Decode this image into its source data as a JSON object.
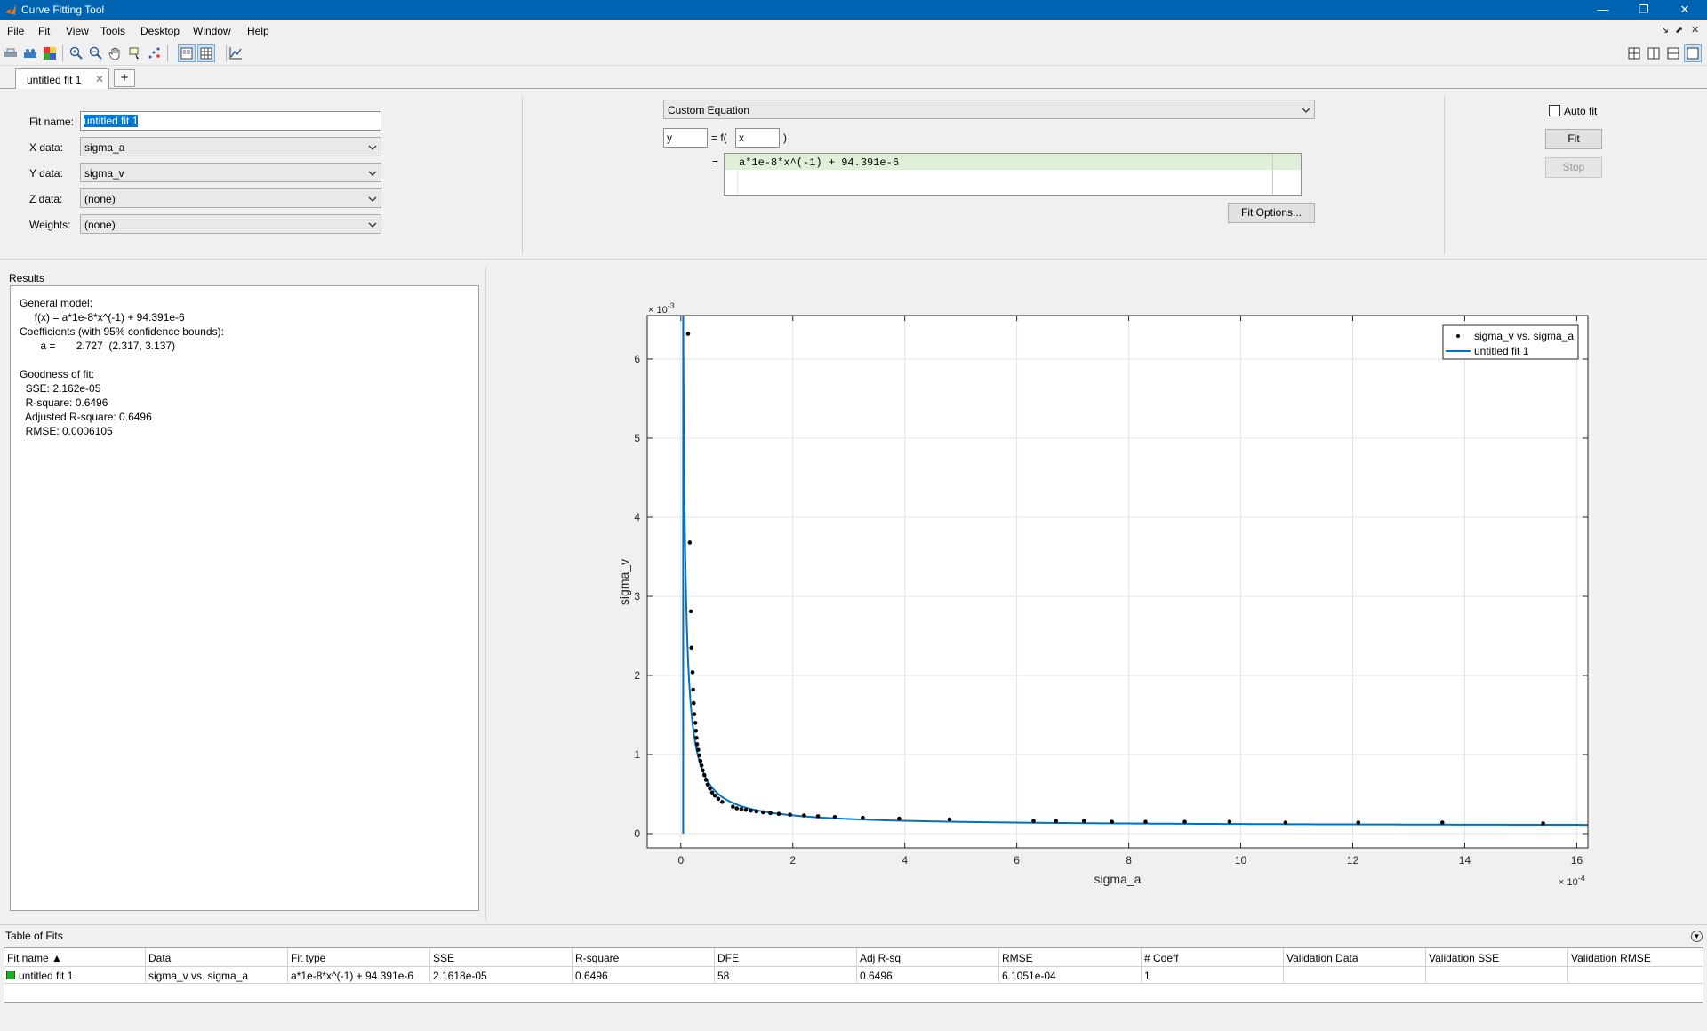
{
  "window": {
    "title": "Curve Fitting Tool",
    "minimize": "—",
    "restore": "❐",
    "close": "✕"
  },
  "menu": [
    "File",
    "Fit",
    "View",
    "Tools",
    "Desktop",
    "Window",
    "Help"
  ],
  "menu_right": [
    "↘",
    "⬈",
    "✕"
  ],
  "tabs": [
    {
      "label": "untitled fit 1",
      "close": "✕"
    }
  ],
  "tab_add": "+",
  "fit_settings": {
    "fit_name_label": "Fit name:",
    "fit_name_value": "untitled fit 1",
    "x_label": "X data:",
    "x_value": "sigma_a",
    "y_label": "Y data:",
    "y_value": "sigma_v",
    "z_label": "Z data:",
    "z_value": "(none)",
    "w_label": "Weights:",
    "w_value": "(none)"
  },
  "equation": {
    "type": "Custom Equation",
    "dep_var": "y",
    "eq_f": "= f(",
    "indep_var": "x",
    "close_paren": ")",
    "equals": "=",
    "expression": "a*1e-8*x^(-1) + 94.391e-6",
    "fit_options": "Fit Options..."
  },
  "controls": {
    "auto_fit": "Auto fit",
    "auto_fit_checked": false,
    "fit": "Fit",
    "stop": "Stop"
  },
  "results": {
    "header": "Results",
    "lines": [
      "General model:",
      "     f(x) = a*1e-8*x^(-1) + 94.391e-6",
      "Coefficients (with 95% confidence bounds):",
      "       a =       2.727  (2.317, 3.137)",
      "",
      "Goodness of fit:",
      "  SSE: 2.162e-05",
      "  R-square: 0.6496",
      "  Adjusted R-square: 0.6496",
      "  RMSE: 0.0006105"
    ]
  },
  "chart_data": {
    "type": "scatter",
    "xlabel": "sigma_a",
    "ylabel": "sigma_v",
    "x_exponent_label": "× 10",
    "x_exponent": "-4",
    "y_exponent_label": "× 10",
    "y_exponent": "-3",
    "xlim": [
      -0.6,
      16.2
    ],
    "ylim": [
      -0.18,
      6.55
    ],
    "xticks": [
      0,
      2,
      4,
      6,
      8,
      10,
      12,
      14,
      16
    ],
    "yticks": [
      0,
      1,
      2,
      3,
      4,
      5,
      6
    ],
    "grid": true,
    "legend_position": "top-right",
    "series": [
      {
        "name": "sigma_v vs. sigma_a",
        "kind": "points",
        "color": "#000000",
        "x": [
          0.13,
          0.16,
          0.18,
          0.19,
          0.21,
          0.22,
          0.23,
          0.24,
          0.26,
          0.27,
          0.28,
          0.29,
          0.31,
          0.33,
          0.35,
          0.37,
          0.39,
          0.42,
          0.45,
          0.48,
          0.52,
          0.56,
          0.61,
          0.67,
          0.74,
          0.93,
          1.0,
          1.08,
          1.16,
          1.25,
          1.35,
          1.47,
          1.6,
          1.75,
          1.95,
          2.2,
          2.45,
          2.75,
          3.25,
          3.9,
          4.8,
          6.3,
          6.7,
          7.2,
          7.7,
          8.3,
          9.0,
          9.8,
          10.8,
          12.1,
          13.6,
          15.4
        ],
        "y": [
          6.32,
          3.68,
          2.81,
          2.35,
          2.04,
          1.82,
          1.65,
          1.51,
          1.4,
          1.3,
          1.21,
          1.13,
          1.06,
          0.99,
          0.92,
          0.86,
          0.8,
          0.74,
          0.68,
          0.62,
          0.57,
          0.52,
          0.48,
          0.44,
          0.4,
          0.34,
          0.32,
          0.31,
          0.3,
          0.29,
          0.28,
          0.27,
          0.26,
          0.25,
          0.24,
          0.23,
          0.22,
          0.21,
          0.2,
          0.19,
          0.18,
          0.16,
          0.16,
          0.16,
          0.15,
          0.15,
          0.15,
          0.15,
          0.14,
          0.14,
          0.14,
          0.13
        ]
      },
      {
        "name": "untitled fit 1",
        "kind": "fit",
        "color": "#0072bd",
        "model_a": 2.727,
        "model_offset": 0.094391,
        "x_start": 0.042,
        "x_end": 16.2
      }
    ]
  },
  "table": {
    "header": "Table of Fits",
    "columns": [
      "Fit name ▲",
      "Data",
      "Fit type",
      "SSE",
      "R-square",
      "DFE",
      "Adj R-sq",
      "RMSE",
      "# Coeff",
      "Validation Data",
      "Validation SSE",
      "Validation RMSE"
    ],
    "rows": [
      [
        "untitled fit 1",
        "sigma_v vs. sigma_a",
        "a*1e-8*x^(-1) + 94.391e-6",
        "2.1618e-05",
        "0.6496",
        "58",
        "0.6496",
        "6.1051e-04",
        "1",
        "",
        "",
        ""
      ]
    ],
    "status_color": "#22aa22"
  }
}
